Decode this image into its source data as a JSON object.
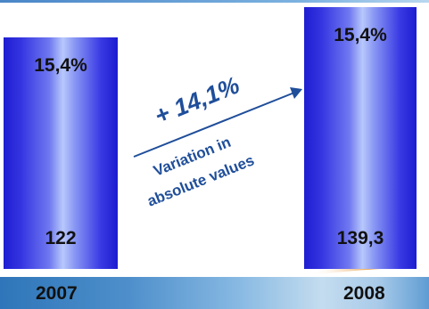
{
  "chart_data": {
    "type": "bar",
    "categories": [
      "2007",
      "2008"
    ],
    "values": [
      122,
      139.3
    ],
    "top_labels": [
      "15,4%",
      "15,4%"
    ],
    "value_labels": [
      "122",
      "139,3"
    ],
    "annotation": {
      "change": "+ 14,1%",
      "line1": "Variation in",
      "line2": "absolute values"
    },
    "colors": {
      "bar_dark": "#1e1ed2",
      "bar_light": "#b8c8fb",
      "arrow": "#1f4e9a",
      "base_band": "#4e8fcb"
    }
  }
}
